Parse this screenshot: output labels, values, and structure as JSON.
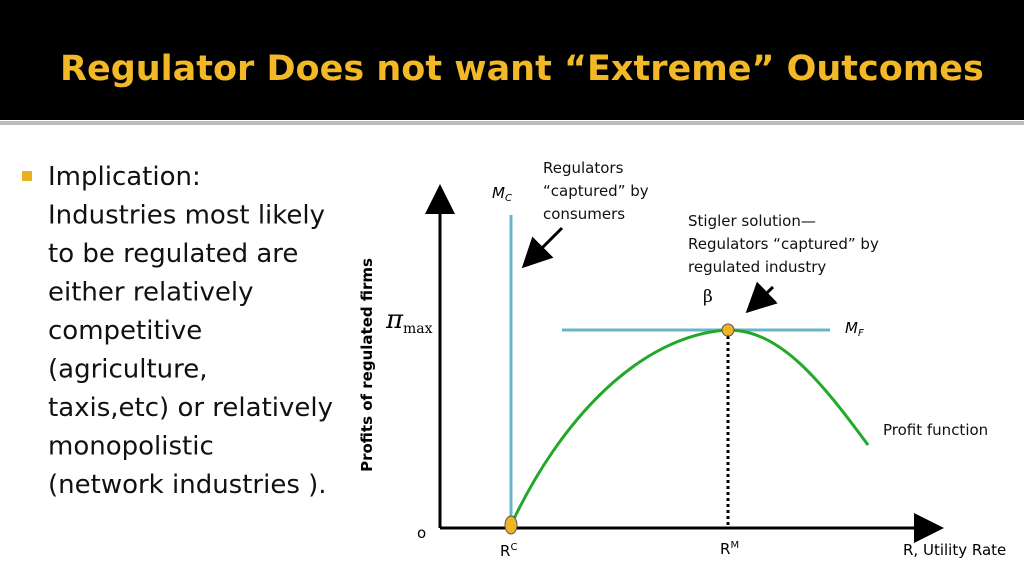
{
  "title": "Regulator Does not want “Extreme” Outcomes",
  "bullet": {
    "lines": [
      "Implication:",
      "Industries most likely",
      "to be regulated are",
      "either relatively",
      "competitive",
      "(agriculture,",
      "taxis,etc) or relatively",
      "monopolistic",
      "(network industries )."
    ]
  },
  "diagram": {
    "y_axis_label": "Profits of regulated firms",
    "pi": "π",
    "pi_sub": "max",
    "origin": "o",
    "mc": "M",
    "mc_sub": "C",
    "mf": "M",
    "mf_sub": "F",
    "rc": "R",
    "rc_sup": "C",
    "rm": "R",
    "rm_sup": "M",
    "x_axis_label": "R, Utility Rate",
    "beta": "β",
    "profit_label": "Profit function",
    "consumers_note": [
      "Regulators",
      "“captured” by",
      "consumers"
    ],
    "stigler_note": [
      "Stigler solution—",
      "Regulators “captured” by",
      "regulated industry"
    ]
  }
}
